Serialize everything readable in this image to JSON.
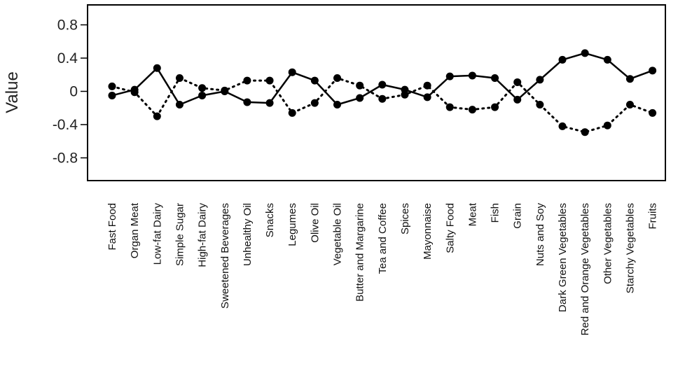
{
  "chart_data": {
    "type": "line",
    "ylabel": "Value",
    "ylim": [
      -1.05,
      1.05
    ],
    "yticks": [
      0.8,
      0.4,
      0,
      -0.4,
      -0.8
    ],
    "ytick_labels": [
      "0.8",
      "0.4",
      "0",
      "-0.4",
      "-0.8"
    ],
    "categories": [
      "Fast Food",
      "Organ Meat",
      "Low-fat Dairy",
      "Simple Sugar",
      "High-fat Dairy",
      "Sweetened Beverages",
      "Unhealthy Oil",
      "Snacks",
      "Legumes",
      "Olive Oil",
      "Vegetable Oil",
      "Butter and Margarine",
      "Tea and Coffee",
      "Spices",
      "Mayonnaise",
      "Salty Food",
      "Meat",
      "Fish",
      "Grain",
      "Nuts and Soy",
      "Dark Green Vegetables",
      "Red and Orange Vegetables",
      "Other Vegetables",
      "Starchy Vegetables",
      "Fruits"
    ],
    "series": [
      {
        "style": "solid",
        "values": [
          -0.05,
          0.02,
          0.28,
          -0.16,
          -0.05,
          0.0,
          -0.13,
          -0.14,
          0.23,
          0.13,
          -0.16,
          -0.08,
          0.08,
          0.02,
          -0.07,
          0.18,
          0.19,
          0.16,
          -0.1,
          0.14,
          0.38,
          0.46,
          0.38,
          0.15,
          0.25
        ]
      },
      {
        "style": "dotted",
        "values": [
          0.06,
          -0.01,
          -0.3,
          0.16,
          0.04,
          0.01,
          0.13,
          0.13,
          -0.26,
          -0.14,
          0.16,
          0.07,
          -0.09,
          -0.04,
          0.07,
          -0.19,
          -0.22,
          -0.19,
          0.11,
          -0.16,
          -0.42,
          -0.49,
          -0.41,
          -0.16,
          -0.26
        ]
      }
    ],
    "grid": false,
    "legend": "none"
  }
}
